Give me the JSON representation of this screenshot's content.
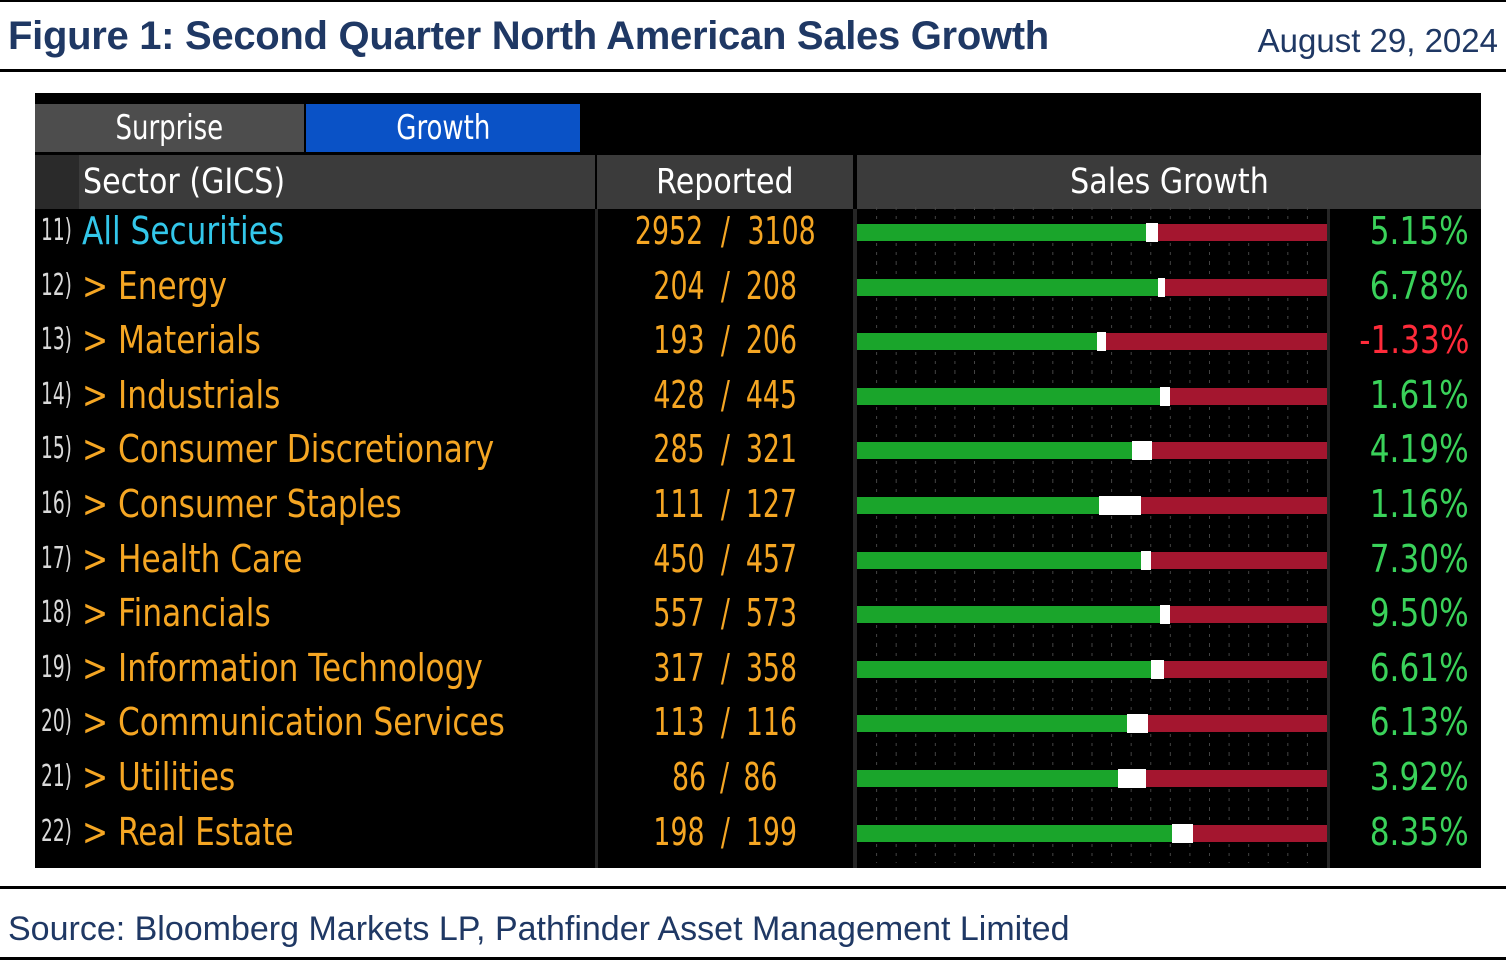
{
  "figure": {
    "title": "Figure 1: Second Quarter North American Sales Growth",
    "date": "August 29, 2024",
    "source": "Source: Bloomberg Markets LP, Pathfinder Asset Management Limited"
  },
  "tabs": [
    {
      "label": "Surprise",
      "active": false
    },
    {
      "label": "Growth",
      "active": true
    }
  ],
  "headers": {
    "sector": "Sector (GICS)",
    "reported": "Reported",
    "growth": "Sales Growth"
  },
  "colors": {
    "positive": "#1aa52b",
    "negative": "#a4162f",
    "value_positive": "#3ad25a",
    "value_negative": "#ff2b3a"
  },
  "chart_data": {
    "type": "bar",
    "title": "Sales Growth",
    "categories": [
      "All Securities",
      "Energy",
      "Materials",
      "Industrials",
      "Consumer Discretionary",
      "Consumer Staples",
      "Health Care",
      "Financials",
      "Information Technology",
      "Communication Services",
      "Utilities",
      "Real Estate"
    ],
    "rows": [
      {
        "num": "11)",
        "sector": "All Securities",
        "prefix": "",
        "reported": "2952",
        "total": "3108",
        "value": "5.15%",
        "green": 0.615,
        "white": 0.025
      },
      {
        "num": "12)",
        "sector": "Energy",
        "prefix": "> ",
        "reported": "204",
        "total": "208",
        "value": "6.78%",
        "green": 0.64,
        "white": 0.015
      },
      {
        "num": "13)",
        "sector": "Materials",
        "prefix": "> ",
        "reported": "193",
        "total": "206",
        "value": "-1.33%",
        "green": 0.51,
        "white": 0.02
      },
      {
        "num": "14)",
        "sector": "Industrials",
        "prefix": "> ",
        "reported": "428",
        "total": "445",
        "value": "1.61%",
        "green": 0.645,
        "white": 0.02
      },
      {
        "num": "15)",
        "sector": "Consumer Discretionary",
        "prefix": "> ",
        "reported": "285",
        "total": "321",
        "value": "4.19%",
        "green": 0.585,
        "white": 0.042
      },
      {
        "num": "16)",
        "sector": "Consumer Staples",
        "prefix": "> ",
        "reported": "111",
        "total": "127",
        "value": "1.16%",
        "green": 0.515,
        "white": 0.09
      },
      {
        "num": "17)",
        "sector": "Health Care",
        "prefix": "> ",
        "reported": "450",
        "total": "457",
        "value": "7.30%",
        "green": 0.605,
        "white": 0.02
      },
      {
        "num": "18)",
        "sector": "Financials",
        "prefix": "> ",
        "reported": "557",
        "total": "573",
        "value": "9.50%",
        "green": 0.645,
        "white": 0.02
      },
      {
        "num": "19)",
        "sector": "Information Technology",
        "prefix": "> ",
        "reported": "317",
        "total": "358",
        "value": "6.61%",
        "green": 0.625,
        "white": 0.028
      },
      {
        "num": "20)",
        "sector": "Communication Services",
        "prefix": "> ",
        "reported": "113",
        "total": "116",
        "value": "6.13%",
        "green": 0.575,
        "white": 0.045
      },
      {
        "num": "21)",
        "sector": "Utilities",
        "prefix": "> ",
        "reported": "86",
        "total": "86",
        "value": "3.92%",
        "green": 0.555,
        "white": 0.06
      },
      {
        "num": "22)",
        "sector": "Real Estate",
        "prefix": "> ",
        "reported": "198",
        "total": "199",
        "value": "8.35%",
        "green": 0.67,
        "white": 0.045
      }
    ]
  }
}
